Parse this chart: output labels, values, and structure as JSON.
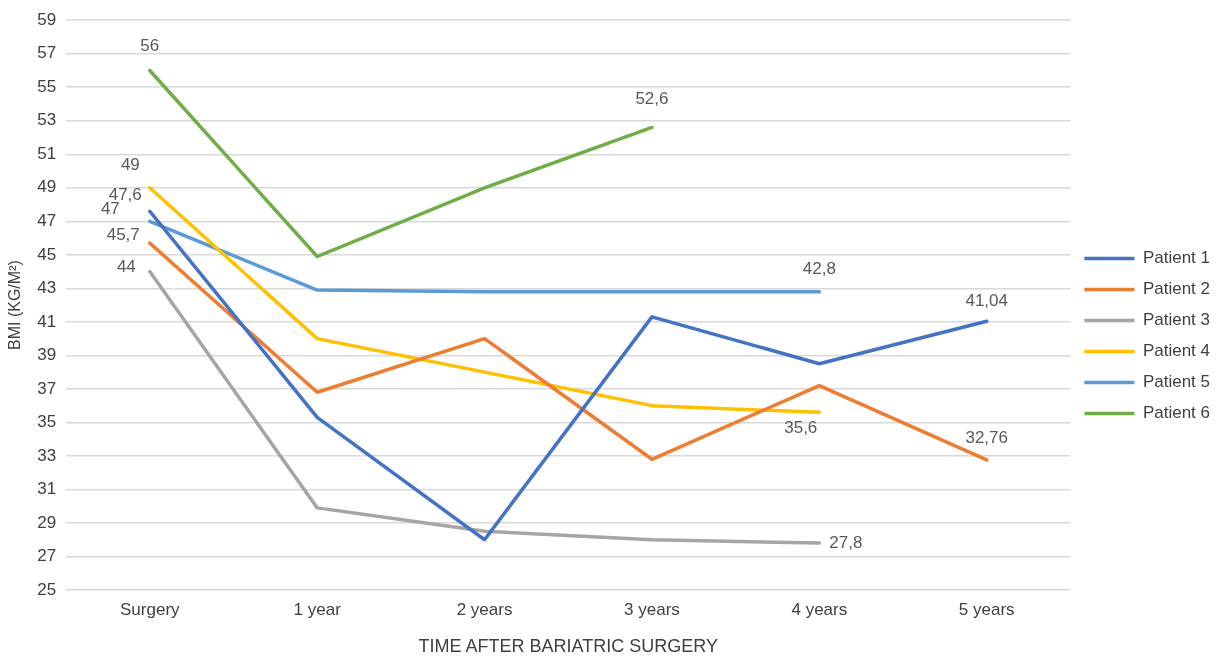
{
  "chart_data": {
    "type": "line",
    "xlabel": "TIME AFTER BARIATRIC SURGERY",
    "ylabel": "BMI (KG/M²)",
    "categories": [
      "Surgery",
      "1 year",
      "2 years",
      "3 years",
      "4 years",
      "5 years"
    ],
    "series": [
      {
        "name": "Patient 1",
        "color": "#4472c4",
        "values": [
          47.6,
          35.3,
          28.0,
          41.3,
          38.5,
          41.04
        ],
        "value_labels": [
          "47,6",
          null,
          null,
          null,
          null,
          "41,04"
        ]
      },
      {
        "name": "Patient 2",
        "color": "#ed7d31",
        "values": [
          45.7,
          36.8,
          40.0,
          32.8,
          37.2,
          32.76
        ],
        "value_labels": [
          "45,7",
          null,
          null,
          null,
          null,
          "32,76"
        ]
      },
      {
        "name": "Patient 3",
        "color": "#a5a5a5",
        "values": [
          44,
          29.9,
          28.5,
          28.0,
          27.8,
          null
        ],
        "value_labels": [
          "44",
          null,
          null,
          null,
          "27,8",
          null
        ]
      },
      {
        "name": "Patient 4",
        "color": "#ffc000",
        "values": [
          49,
          40.0,
          38.0,
          36.0,
          35.6,
          null
        ],
        "value_labels": [
          "49",
          null,
          null,
          null,
          "35,6",
          null
        ]
      },
      {
        "name": "Patient 5",
        "color": "#5b9bd5",
        "values": [
          47,
          42.9,
          42.8,
          42.8,
          42.8,
          null
        ],
        "value_labels": [
          "47",
          null,
          null,
          null,
          "42,8",
          null
        ]
      },
      {
        "name": "Patient 6",
        "color": "#70ad47",
        "values": [
          56,
          44.9,
          49.0,
          52.6,
          null,
          null
        ],
        "value_labels": [
          "56",
          null,
          null,
          "52,6",
          null,
          null
        ]
      }
    ],
    "ylim": [
      25,
      59
    ],
    "yticks": [
      25,
      27,
      29,
      31,
      33,
      35,
      37,
      39,
      41,
      43,
      45,
      47,
      49,
      51,
      53,
      55,
      57,
      59
    ],
    "grid": "y",
    "legend": "right",
    "marker": "none",
    "line_style": "solid"
  }
}
